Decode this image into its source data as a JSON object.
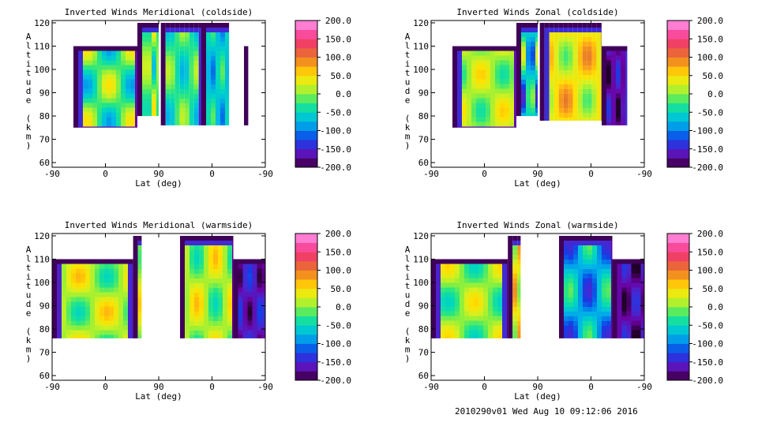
{
  "chart_data": [
    {
      "type": "heatmap",
      "title": "Inverted Winds Meridional (coldside)",
      "xlabel": "Lat (deg)",
      "ylabel": "Altitude (km)",
      "x_ticks": [
        "-90",
        "0",
        "90",
        "0",
        "-90"
      ],
      "y_ticks": [
        "60",
        "70",
        "80",
        "90",
        "100",
        "110",
        "120"
      ],
      "ylim": [
        58,
        121
      ],
      "colorbar": {
        "min": -200,
        "max": 200,
        "ticks": [
          "200.0",
          "150.0",
          "100.0",
          "50.0",
          "0.0",
          "-50.0",
          "-100.0",
          "-150.0",
          "-200.0"
        ]
      }
    },
    {
      "type": "heatmap",
      "title": "Inverted Winds Zonal (coldside)",
      "xlabel": "Lat (deg)",
      "ylabel": "Altitude (km)",
      "x_ticks": [
        "-90",
        "0",
        "90",
        "0",
        "-90"
      ],
      "y_ticks": [
        "60",
        "70",
        "80",
        "90",
        "100",
        "110",
        "120"
      ],
      "ylim": [
        58,
        121
      ],
      "colorbar": {
        "min": -200,
        "max": 200,
        "ticks": [
          "200.0",
          "150.0",
          "100.0",
          "50.0",
          "0.0",
          "-50.0",
          "-100.0",
          "-150.0",
          "-200.0"
        ]
      }
    },
    {
      "type": "heatmap",
      "title": "Inverted Winds Meridional (warmside)",
      "xlabel": "Lat (deg)",
      "ylabel": "Altitude (km)",
      "x_ticks": [
        "-90",
        "0",
        "90",
        "0",
        "-90"
      ],
      "y_ticks": [
        "60",
        "70",
        "80",
        "90",
        "100",
        "110",
        "120"
      ],
      "ylim": [
        58,
        121
      ],
      "colorbar": {
        "min": -200,
        "max": 200,
        "ticks": [
          "200.0",
          "150.0",
          "100.0",
          "50.0",
          "0.0",
          "-50.0",
          "-100.0",
          "-150.0",
          "-200.0"
        ]
      }
    },
    {
      "type": "heatmap",
      "title": "Inverted Winds Zonal (warmside)",
      "xlabel": "Lat (deg)",
      "ylabel": "Altitude (km)",
      "x_ticks": [
        "-90",
        "0",
        "90",
        "0",
        "-90"
      ],
      "y_ticks": [
        "60",
        "70",
        "80",
        "90",
        "100",
        "110",
        "120"
      ],
      "ylim": [
        58,
        121
      ],
      "colorbar": {
        "min": -200,
        "max": 200,
        "ticks": [
          "200.0",
          "150.0",
          "100.0",
          "50.0",
          "0.0",
          "-50.0",
          "-100.0",
          "-150.0",
          "-200.0"
        ]
      }
    }
  ],
  "footer": "2010290v01 Wed Aug 10 09:12:06 2016"
}
